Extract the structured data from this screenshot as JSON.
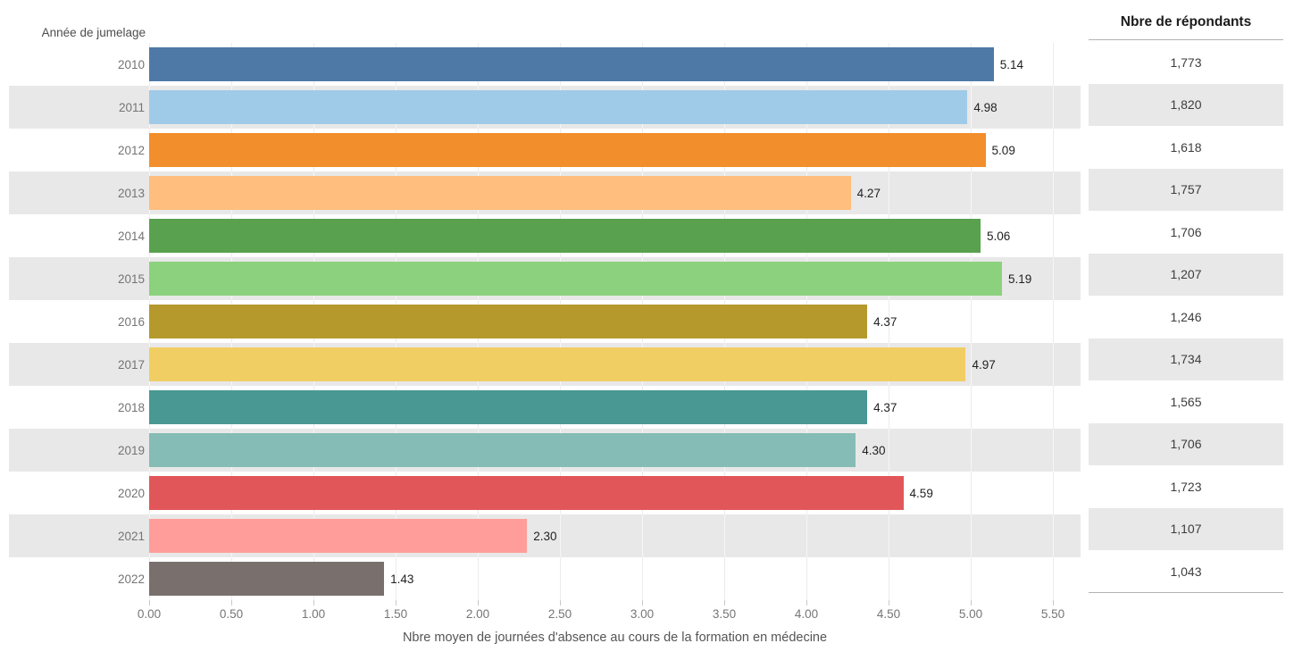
{
  "chart_data": {
    "type": "bar",
    "orientation": "horizontal",
    "title": "",
    "ylabel": "Année de jumelage",
    "xlabel": "Nbre moyen de journées d'absence au cours de la formation en médecine",
    "right_column_header": "Nbre de répondants",
    "categories": [
      "2010",
      "2011",
      "2012",
      "2013",
      "2014",
      "2015",
      "2016",
      "2017",
      "2018",
      "2019",
      "2020",
      "2021",
      "2022"
    ],
    "values": [
      5.14,
      4.98,
      5.09,
      4.27,
      5.06,
      5.19,
      4.37,
      4.97,
      4.37,
      4.3,
      4.59,
      2.3,
      1.43
    ],
    "value_labels": [
      "5.14",
      "4.98",
      "5.09",
      "4.27",
      "5.06",
      "5.19",
      "4.37",
      "4.97",
      "4.37",
      "4.30",
      "4.59",
      "2.30",
      "1.43"
    ],
    "respondents": [
      "1,773",
      "1,820",
      "1,618",
      "1,757",
      "1,706",
      "1,207",
      "1,246",
      "1,734",
      "1,565",
      "1,706",
      "1,723",
      "1,107",
      "1,043"
    ],
    "x_ticks": [
      "0.00",
      "0.50",
      "1.00",
      "1.50",
      "2.00",
      "2.50",
      "3.00",
      "3.50",
      "4.00",
      "4.50",
      "5.00",
      "5.50"
    ],
    "xlim": [
      0,
      5.5
    ],
    "grid": "vertical",
    "legend": "none",
    "bar_colors": [
      "#4e79a7",
      "#a0cbe8",
      "#f28e2b",
      "#ffbe7d",
      "#59a14f",
      "#8cd17d",
      "#b6992d",
      "#f1ce63",
      "#499894",
      "#86bcb6",
      "#e15759",
      "#ff9d9a",
      "#79706e"
    ],
    "stripe_color": "#e8e8e8"
  }
}
